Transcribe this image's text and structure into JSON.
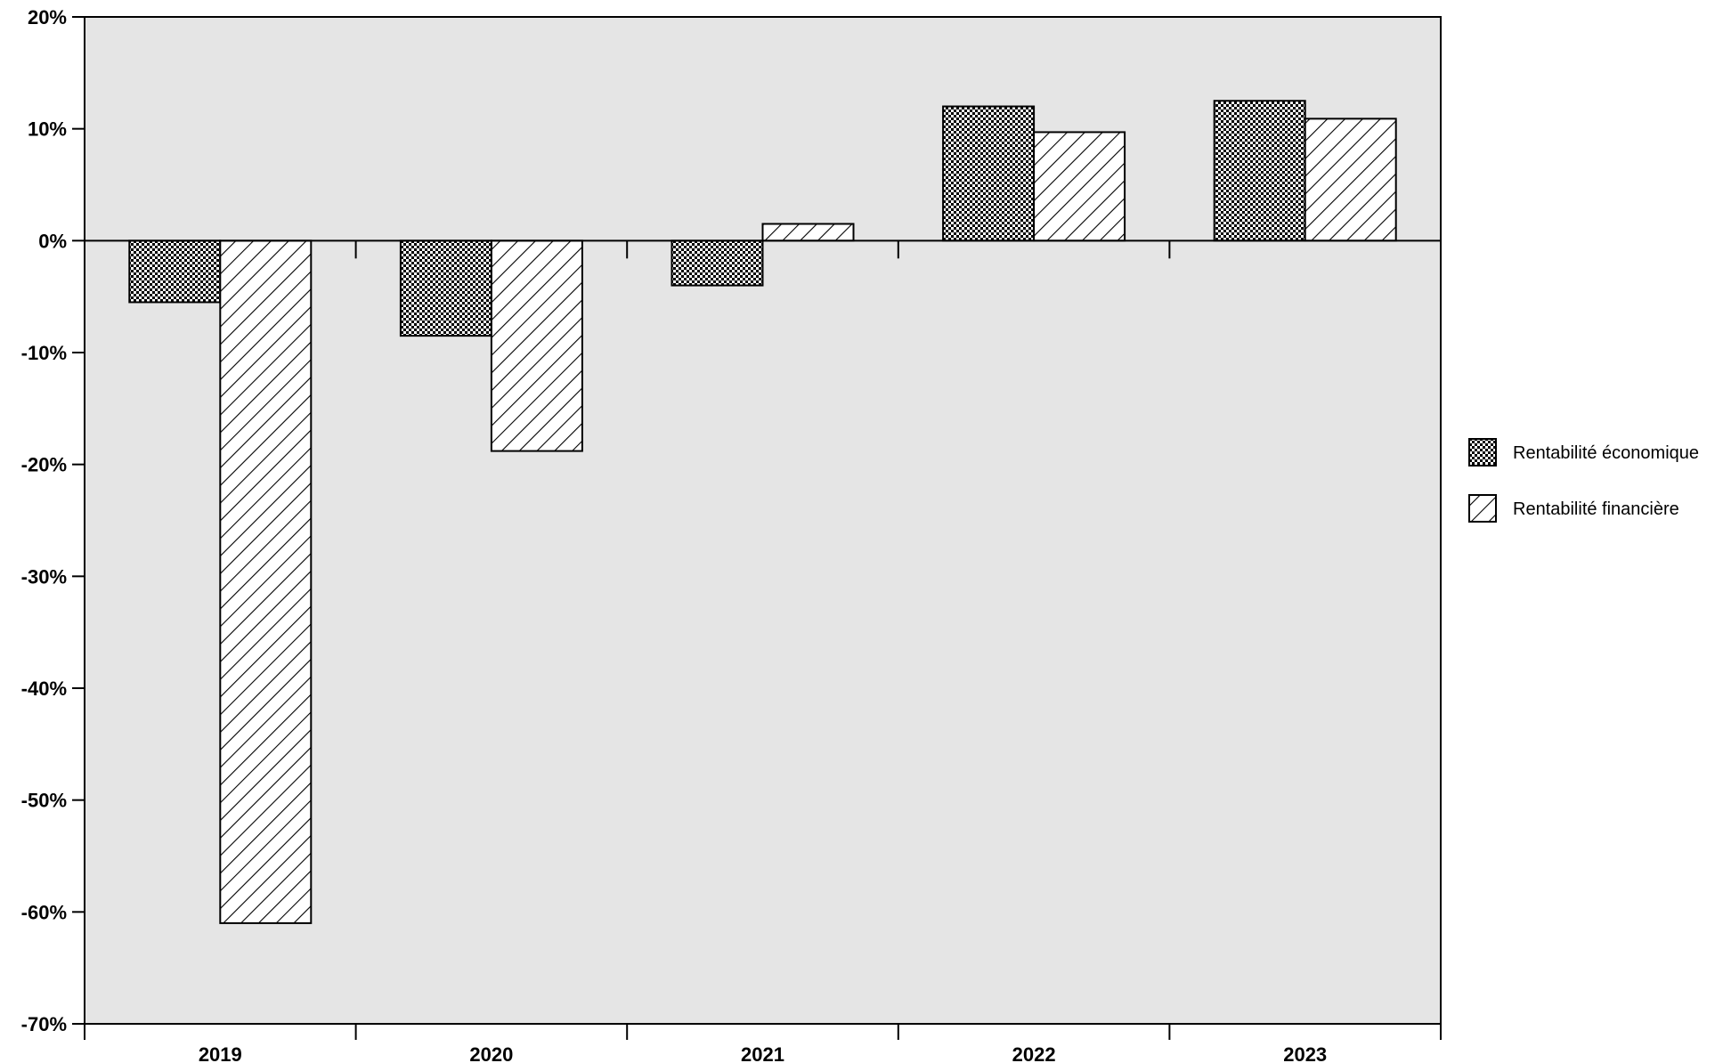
{
  "chart_data": {
    "type": "bar",
    "title": "",
    "xlabel": "",
    "ylabel": "",
    "categories": [
      "2019",
      "2020",
      "2021",
      "2022",
      "2023"
    ],
    "series": [
      {
        "name": "Rentabilité économique",
        "values": [
          -5.5,
          -8.5,
          -4.0,
          12.0,
          12.5
        ],
        "pattern": "checker"
      },
      {
        "name": "Rentabilité financière",
        "values": [
          -61.0,
          -18.8,
          1.5,
          9.7,
          10.9
        ],
        "pattern": "hatch"
      }
    ],
    "ylim": [
      -70,
      20
    ],
    "yticks": [
      20,
      10,
      0,
      -10,
      -20,
      -30,
      -40,
      -50,
      -60,
      -70
    ],
    "ytick_format": "%",
    "grid": false,
    "legend_position": "right",
    "colors": {
      "plot_background": "#e5e5e5",
      "bar_stroke": "#000000",
      "bar_fill": "#ffffff"
    }
  }
}
